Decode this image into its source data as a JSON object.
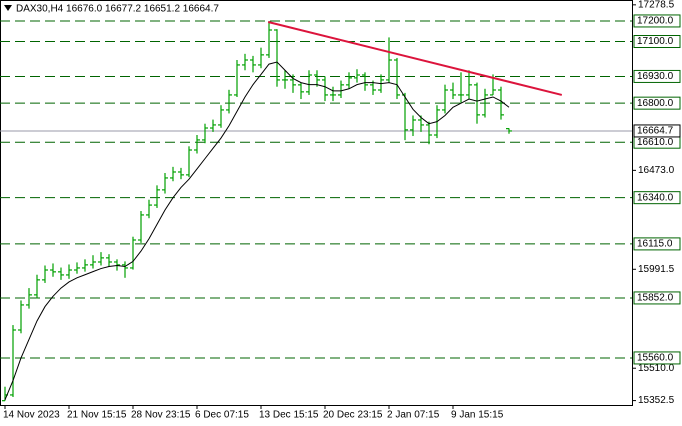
{
  "chart_data": {
    "type": "ohlc",
    "title": "DAX30,H4  16676.0 16677.2 16651.2 16664.7",
    "categories": [
      "14 Nov 2023",
      null,
      null,
      null,
      null,
      null,
      null,
      null,
      "21 Nov 15:15",
      null,
      null,
      null,
      null,
      null,
      null,
      null,
      "28 Nov 23:15",
      null,
      null,
      null,
      null,
      null,
      null,
      null,
      "6 Dec 07:15",
      null,
      null,
      null,
      null,
      null,
      null,
      null,
      "13 Dec 15:15",
      null,
      null,
      null,
      null,
      null,
      null,
      null,
      "20 Dec 23:15",
      null,
      null,
      null,
      null,
      null,
      null,
      null,
      "2 Jan 07:15",
      null,
      null,
      null,
      null,
      null,
      null,
      null,
      "9 Jan 15:15",
      null,
      null,
      null,
      null,
      null,
      null,
      null
    ],
    "open": [
      15352,
      15380,
      15696,
      15818,
      15867,
      15940,
      15988,
      15979,
      15964,
      15988,
      15998,
      16013,
      16027,
      16047,
      16027,
      16013,
      15998,
      16134,
      16256,
      16304,
      16378,
      16436,
      16465,
      16451,
      16572,
      16621,
      16679,
      16694,
      16767,
      16840,
      16986,
      17010,
      16986,
      17035,
      17156,
      16913,
      16913,
      16889,
      16855,
      16937,
      16913,
      16840,
      16840,
      16889,
      16923,
      16937,
      16889,
      16864,
      16913,
      17010,
      16840,
      16670,
      16718,
      16694,
      16645,
      16767,
      16864,
      16840,
      16840,
      16889,
      16743,
      16840,
      16864,
      16676.0
    ],
    "high": [
      15420,
      15720,
      15840,
      15900,
      15965,
      16010,
      16020,
      16000,
      16015,
      16025,
      16040,
      16060,
      16075,
      16065,
      16040,
      16030,
      16150,
      16275,
      16330,
      16400,
      16460,
      16490,
      16485,
      16590,
      16645,
      16700,
      16720,
      16790,
      16865,
      17010,
      17040,
      17030,
      17070,
      17200,
      17160,
      16960,
      16940,
      16900,
      16960,
      16960,
      16930,
      16880,
      16910,
      16950,
      16965,
      16950,
      16910,
      16940,
      17120,
      17020,
      16850,
      16740,
      16740,
      16710,
      16790,
      16890,
      16900,
      16950,
      16960,
      16900,
      16870,
      16940,
      16880,
      16677.2
    ],
    "low": [
      15352,
      15370,
      15680,
      15800,
      15850,
      15925,
      15955,
      15940,
      15945,
      15970,
      15980,
      15995,
      16010,
      16005,
      15985,
      15950,
      15990,
      16120,
      16240,
      16290,
      16360,
      16420,
      16430,
      16440,
      16555,
      16605,
      16660,
      16680,
      16750,
      16830,
      16960,
      16950,
      16970,
      17020,
      16880,
      16870,
      16850,
      16820,
      16840,
      16880,
      16810,
      16810,
      16825,
      16870,
      16900,
      16860,
      16840,
      16850,
      16900,
      16820,
      16620,
      16640,
      16660,
      16600,
      16630,
      16750,
      16820,
      16800,
      16820,
      16700,
      16730,
      16840,
      16720,
      16651.2
    ],
    "close": [
      15380,
      15696,
      15818,
      15867,
      15940,
      15988,
      15979,
      15964,
      15988,
      15998,
      16013,
      16027,
      16047,
      16027,
      16013,
      15998,
      16134,
      16256,
      16304,
      16378,
      16436,
      16465,
      16451,
      16572,
      16621,
      16679,
      16694,
      16767,
      16840,
      16986,
      17010,
      16986,
      17035,
      17156,
      16913,
      16913,
      16889,
      16855,
      16937,
      16913,
      16840,
      16840,
      16889,
      16923,
      16937,
      16889,
      16864,
      16913,
      17010,
      16840,
      16670,
      16718,
      16694,
      16645,
      16767,
      16864,
      16840,
      16840,
      16889,
      16743,
      16840,
      16864,
      16743,
      16664.7
    ],
    "color": "#00a000",
    "ma": {
      "color": "#000000",
      "values": [
        15356,
        15450,
        15560,
        15650,
        15740,
        15810,
        15860,
        15900,
        15930,
        15950,
        15965,
        15980,
        15995,
        16005,
        16010,
        16005,
        16030,
        16080,
        16140,
        16210,
        16280,
        16340,
        16390,
        16430,
        16480,
        16530,
        16580,
        16630,
        16690,
        16760,
        16830,
        16890,
        16940,
        16990,
        17000,
        16960,
        16920,
        16900,
        16890,
        16890,
        16880,
        16860,
        16860,
        16870,
        16890,
        16900,
        16900,
        16895,
        16900,
        16890,
        16830,
        16770,
        16730,
        16700,
        16710,
        16740,
        16780,
        16800,
        16820,
        16810,
        16820,
        16830,
        16810,
        16780
      ]
    },
    "ylim": [
      15331,
      17302
    ],
    "yticks": [
      17278.5,
      {
        "value": 16473,
        "label": "16473.0"
      },
      15991.5,
      {
        "value": 15510,
        "label": "15510.0"
      },
      15352.5
    ],
    "levels": [
      {
        "value": 17200,
        "label": "17200.0"
      },
      {
        "value": 17100,
        "label": "17100.0"
      },
      {
        "value": 16930,
        "label": "16930.0"
      },
      {
        "value": 16800,
        "label": "16800.0"
      },
      {
        "value": 16610,
        "label": "16610.0"
      },
      {
        "value": 16340,
        "label": "16340.0"
      },
      {
        "value": 16115,
        "label": "16115.0"
      },
      {
        "value": 15852,
        "label": "15852.0"
      },
      {
        "value": 15560,
        "label": "15560.0"
      }
    ],
    "level_color": "#006400",
    "current": 16664.7,
    "trendline": {
      "color": "#dc143c",
      "x": [
        32.9,
        69.6
      ],
      "y": [
        17195,
        16840
      ]
    }
  }
}
